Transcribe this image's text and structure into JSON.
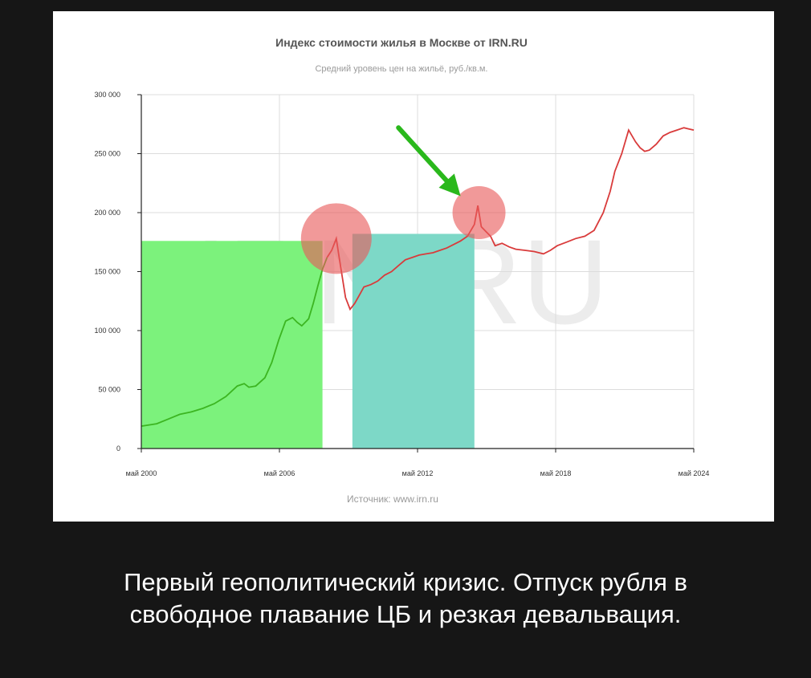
{
  "chart_data": {
    "type": "line",
    "title": "Индекс стоимости жилья в Москве от IRN.RU",
    "subtitle": "Средний уровень цен на жильё, руб./кв.м.",
    "watermark": "IRN.RU",
    "source": "Источник: www.irn.ru",
    "ylim": [
      0,
      300000
    ],
    "yticks": [
      0,
      50000,
      100000,
      150000,
      200000,
      250000,
      300000
    ],
    "ytick_labels": [
      "0",
      "50 000",
      "100 000",
      "150 000",
      "200 000",
      "250 000",
      "300 000"
    ],
    "xlim": [
      2000.33,
      2024.33
    ],
    "xticks": [
      2000.33,
      2006.33,
      2012.33,
      2018.33,
      2024.33
    ],
    "xtick_labels": [
      "май 2000",
      "май 2006",
      "май 2012",
      "май 2018",
      "май 2024"
    ],
    "grid": true,
    "colors": {
      "line_before": "#3cb521",
      "line_after": "#d93b3b",
      "region_1": "#7cf27c",
      "region_2": "#7dd8c7",
      "highlight": "#e85a5a",
      "arrow": "#2ab81c"
    },
    "color_split_year": 2008.4,
    "regions": [
      {
        "x": [
          2000.33,
          2008.2
        ],
        "y_max": 176000
      },
      {
        "x": [
          2009.5,
          2014.8
        ],
        "y_max": 182000
      }
    ],
    "highlights": [
      {
        "x": 2008.8,
        "y": 178000
      },
      {
        "x": 2015.0,
        "y": 200000
      }
    ],
    "arrow": {
      "from": [
        2011.5,
        272000
      ],
      "to": [
        2014.2,
        214000
      ]
    },
    "series": [
      {
        "x": [
          2000.33,
          2001.0,
          2001.5,
          2002.0,
          2002.5,
          2003.0,
          2003.5,
          2004.0,
          2004.5,
          2004.8,
          2005.0,
          2005.3,
          2005.7,
          2006.0,
          2006.3,
          2006.6,
          2006.9,
          2007.1,
          2007.3,
          2007.6,
          2007.8,
          2008.0,
          2008.2,
          2008.4,
          2008.6,
          2008.8,
          2008.9,
          2009.0,
          2009.2,
          2009.4,
          2009.6,
          2009.8,
          2010.0,
          2010.3,
          2010.6,
          2010.9,
          2011.2,
          2011.5,
          2011.8,
          2012.1,
          2012.4,
          2012.7,
          2013.0,
          2013.3,
          2013.6,
          2013.9,
          2014.2,
          2014.5,
          2014.8,
          2014.95,
          2015.1,
          2015.3,
          2015.5,
          2015.7,
          2016.0,
          2016.3,
          2016.6,
          2017.0,
          2017.4,
          2017.8,
          2018.1,
          2018.4,
          2018.8,
          2019.2,
          2019.6,
          2020.0,
          2020.4,
          2020.7,
          2020.9,
          2021.2,
          2021.5,
          2021.8,
          2022.0,
          2022.2,
          2022.4,
          2022.7,
          2023.0,
          2023.3,
          2023.6,
          2023.9,
          2024.1,
          2024.33
        ],
        "y": [
          19000,
          21000,
          25000,
          29000,
          31000,
          34000,
          38000,
          44000,
          53000,
          55000,
          52000,
          53000,
          60000,
          73000,
          92000,
          108000,
          111000,
          107000,
          104000,
          110000,
          123000,
          138000,
          152000,
          162000,
          168000,
          178000,
          165000,
          153000,
          128000,
          118000,
          123000,
          130000,
          137000,
          139000,
          142000,
          147000,
          150000,
          155000,
          160000,
          162000,
          164000,
          165000,
          166000,
          168000,
          170000,
          173000,
          176000,
          180000,
          190000,
          206000,
          188000,
          184000,
          180000,
          172000,
          174000,
          171000,
          169000,
          168000,
          167000,
          165000,
          168000,
          172000,
          175000,
          178000,
          180000,
          185000,
          200000,
          218000,
          235000,
          250000,
          270000,
          260000,
          255000,
          252000,
          253000,
          258000,
          265000,
          268000,
          270000,
          272000,
          271000,
          270000
        ]
      }
    ]
  },
  "caption": {
    "line1": "Первый геополитический кризис. Отпуск рубля в",
    "line2": "свободное плавание ЦБ и резкая девальвация."
  }
}
